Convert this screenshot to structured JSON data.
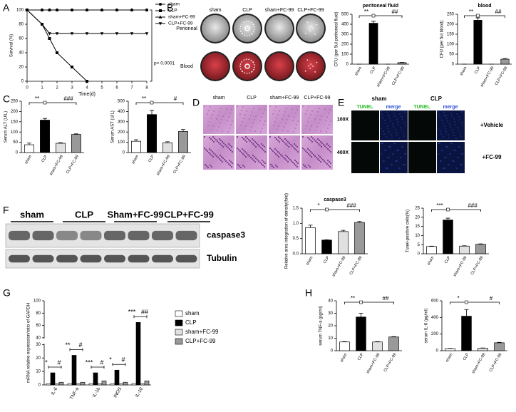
{
  "panel_labels": [
    "A",
    "B",
    "C",
    "D",
    "E",
    "F",
    "G",
    "H"
  ],
  "plates": {
    "columns": [
      "sham",
      "CLP",
      "sham+FC-99",
      "CLP+FC-99"
    ],
    "rows": [
      "Perioneal",
      "Blood"
    ]
  },
  "histology": {
    "columns": [
      "sham",
      "CLP",
      "sham+FC-99",
      "CLP+FC-99"
    ],
    "rows": [
      "100X",
      "400X"
    ]
  },
  "fluorescence": {
    "groups": [
      "sham",
      "CLP"
    ],
    "channels": [
      "TUNEL",
      "merge",
      "TUNEL",
      "merge"
    ],
    "rows": [
      "+Vehicle",
      "+FC-99"
    ]
  },
  "blot": {
    "lanes": [
      "sham",
      "CLP",
      "Sham+FC-99",
      "CLP+FC-99"
    ],
    "rows": [
      "caspase3",
      "Tubulin"
    ]
  },
  "chart_data": [
    {
      "type": "line",
      "xlabel": "Time(d)",
      "ylabel": "Survival (%)",
      "annotation": "p< 0.0001",
      "x": [
        0,
        1,
        1.5,
        2,
        3,
        4,
        5,
        6,
        7,
        8
      ],
      "xlim": [
        0,
        8
      ],
      "xticks": [
        0,
        1,
        2,
        3,
        4,
        5,
        6,
        7,
        8
      ],
      "ylim": [
        0,
        100
      ],
      "yticks": [
        0,
        20,
        40,
        60,
        80,
        100
      ],
      "legend": "upper right",
      "series": [
        {
          "name": "sham",
          "color": "#000000",
          "marker": "circle",
          "values": [
            100,
            100,
            100,
            100,
            100,
            100,
            100,
            100,
            100,
            100
          ]
        },
        {
          "name": "CLP",
          "color": "#000000",
          "marker": "square",
          "values": [
            100,
            80,
            60,
            40,
            20,
            0,
            null,
            null,
            null,
            null
          ]
        },
        {
          "name": "sham+FC-99",
          "color": "#000000",
          "marker": "triangle",
          "values": [
            100,
            100,
            100,
            100,
            100,
            100,
            100,
            100,
            100,
            100
          ]
        },
        {
          "name": "CLP+FC-99",
          "color": "#000000",
          "marker": "triangle-down",
          "values": [
            100,
            80,
            67,
            67,
            67,
            67,
            67,
            67,
            67,
            67
          ]
        }
      ]
    },
    {
      "type": "bar",
      "title": "peritoneal fluid",
      "ylabel": "CFU (per 5ul peritoneal fluid)",
      "categories": [
        "sham",
        "CLP",
        "sham+FC-99",
        "CLP+FC-99"
      ],
      "values": [
        0,
        410,
        0,
        15
      ],
      "errors": [
        0,
        20,
        0,
        3
      ],
      "colors": [
        "#ffffff",
        "#000000",
        "#e0e0e0",
        "#999999"
      ],
      "ylim": [
        0,
        500
      ],
      "yticks": [
        0,
        100,
        200,
        300,
        400,
        500
      ],
      "annotations": [
        "**",
        "##"
      ]
    },
    {
      "type": "bar",
      "title": "blood",
      "ylabel": "CFU (per 5ul blood)",
      "categories": [
        "sham",
        "CLP",
        "sham+FC-99",
        "CLP+FC-99"
      ],
      "values": [
        0,
        220,
        0,
        25
      ],
      "errors": [
        0,
        12,
        0,
        3
      ],
      "colors": [
        "#ffffff",
        "#000000",
        "#e0e0e0",
        "#999999"
      ],
      "ylim": [
        0,
        250
      ],
      "yticks": [
        0,
        50,
        100,
        150,
        200,
        250
      ],
      "annotations": [
        "**",
        "##"
      ]
    },
    {
      "type": "bar",
      "ylabel": "Serum ALT (U/L)",
      "categories": [
        "sham",
        "CLP",
        "sham+FC-99",
        "CLP+FC-99"
      ],
      "values": [
        38,
        158,
        45,
        88
      ],
      "errors": [
        8,
        8,
        3,
        3
      ],
      "colors": [
        "#ffffff",
        "#000000",
        "#e0e0e0",
        "#999999"
      ],
      "ylim": [
        0,
        250
      ],
      "yticks": [
        0,
        50,
        100,
        150,
        200,
        250
      ],
      "annotations": [
        "**",
        "###"
      ]
    },
    {
      "type": "bar",
      "ylabel": "Serum AST (U/L)",
      "categories": [
        "sham",
        "CLP",
        "sham+FC-99",
        "CLP+FC-99"
      ],
      "values": [
        110,
        370,
        95,
        205
      ],
      "errors": [
        15,
        40,
        10,
        20
      ],
      "colors": [
        "#ffffff",
        "#000000",
        "#e0e0e0",
        "#999999"
      ],
      "ylim": [
        0,
        500
      ],
      "yticks": [
        0,
        100,
        200,
        300,
        400,
        500
      ],
      "annotations": [
        "**",
        "#"
      ]
    },
    {
      "type": "bar",
      "title": "caspase3",
      "ylabel": "Relative area integration of density(fold)",
      "categories": [
        "sham",
        "CLP",
        "sham+FC-99",
        "CLP+FC-99"
      ],
      "values": [
        0.86,
        0.45,
        0.73,
        1.03
      ],
      "errors": [
        0.08,
        0.01,
        0.04,
        0.03
      ],
      "colors": [
        "#ffffff",
        "#000000",
        "#e0e0e0",
        "#999999"
      ],
      "ylim": [
        0,
        1.5
      ],
      "yticks": [
        {
          "value": 0,
          "label": "0.0"
        },
        0.5,
        {
          "value": 1,
          "label": "1.0"
        },
        1.5
      ],
      "annotations": [
        "*",
        "###"
      ]
    },
    {
      "type": "bar",
      "ylabel": "Tunel-positive cells(%)",
      "categories": [
        "sham",
        "CLP",
        "sham+FC-99",
        "CLP+FC-99"
      ],
      "values": [
        4,
        18.5,
        4.2,
        5.2
      ],
      "errors": [
        0.2,
        1,
        0.2,
        0.2
      ],
      "colors": [
        "#ffffff",
        "#000000",
        "#e0e0e0",
        "#999999"
      ],
      "ylim": [
        0,
        25
      ],
      "yticks": [
        0,
        5,
        10,
        15,
        20,
        25
      ],
      "annotations": [
        "***",
        "###"
      ]
    },
    {
      "type": "grouped-bar",
      "ylabel": "mRNA relative expression/ratio of GAPDH",
      "categories": [
        "IL-6",
        "TNF-a",
        "IL-1b",
        "iNOS",
        "IL-10"
      ],
      "ylim": [
        0,
        100
      ],
      "yticks": [
        0,
        10,
        20,
        30,
        40,
        60,
        80,
        100
      ],
      "axis_break": [
        30,
        40
      ],
      "legend": "right",
      "annotations": [
        [
          "*",
          "#"
        ],
        [
          "**",
          "#"
        ],
        [
          "***",
          "#"
        ],
        [
          "*",
          "#"
        ],
        [
          "***",
          "##"
        ]
      ],
      "series": [
        {
          "name": "sham",
          "color": "#ffffff",
          "values": [
            1,
            1,
            1,
            1,
            1
          ]
        },
        {
          "name": "CLP",
          "color": "#000000",
          "values": [
            9,
            22,
            9,
            11,
            65
          ]
        },
        {
          "name": "sham+FC-99",
          "color": "#e0e0e0",
          "values": [
            1,
            1,
            1,
            1,
            1
          ]
        },
        {
          "name": "CLP+FC-99",
          "color": "#999999",
          "values": [
            2,
            2,
            3,
            2,
            3
          ]
        }
      ]
    },
    {
      "type": "bar",
      "ylabel": "serum TNF-a (pg/ml)",
      "categories": [
        "sham",
        "CLP",
        "sham+FC-99",
        "CLP+FC-99"
      ],
      "values": [
        7,
        27,
        7,
        11
      ],
      "errors": [
        0.3,
        3,
        0.3,
        0.3
      ],
      "colors": [
        "#ffffff",
        "#000000",
        "#e0e0e0",
        "#999999"
      ],
      "ylim": [
        0,
        40
      ],
      "yticks": [
        0,
        10,
        20,
        30,
        40
      ],
      "annotations": [
        "**",
        "##"
      ]
    },
    {
      "type": "bar",
      "ylabel": "serum IL-6 (pg/ml)",
      "categories": [
        "sham",
        "CLP",
        "sham+FC-99",
        "CLP+FC-99"
      ],
      "values": [
        25,
        415,
        30,
        95
      ],
      "errors": [
        3,
        80,
        3,
        5
      ],
      "colors": [
        "#ffffff",
        "#000000",
        "#e0e0e0",
        "#999999"
      ],
      "ylim": [
        0,
        600
      ],
      "yticks": [
        0,
        200,
        400,
        600
      ],
      "annotations": [
        "*",
        "#"
      ]
    }
  ]
}
